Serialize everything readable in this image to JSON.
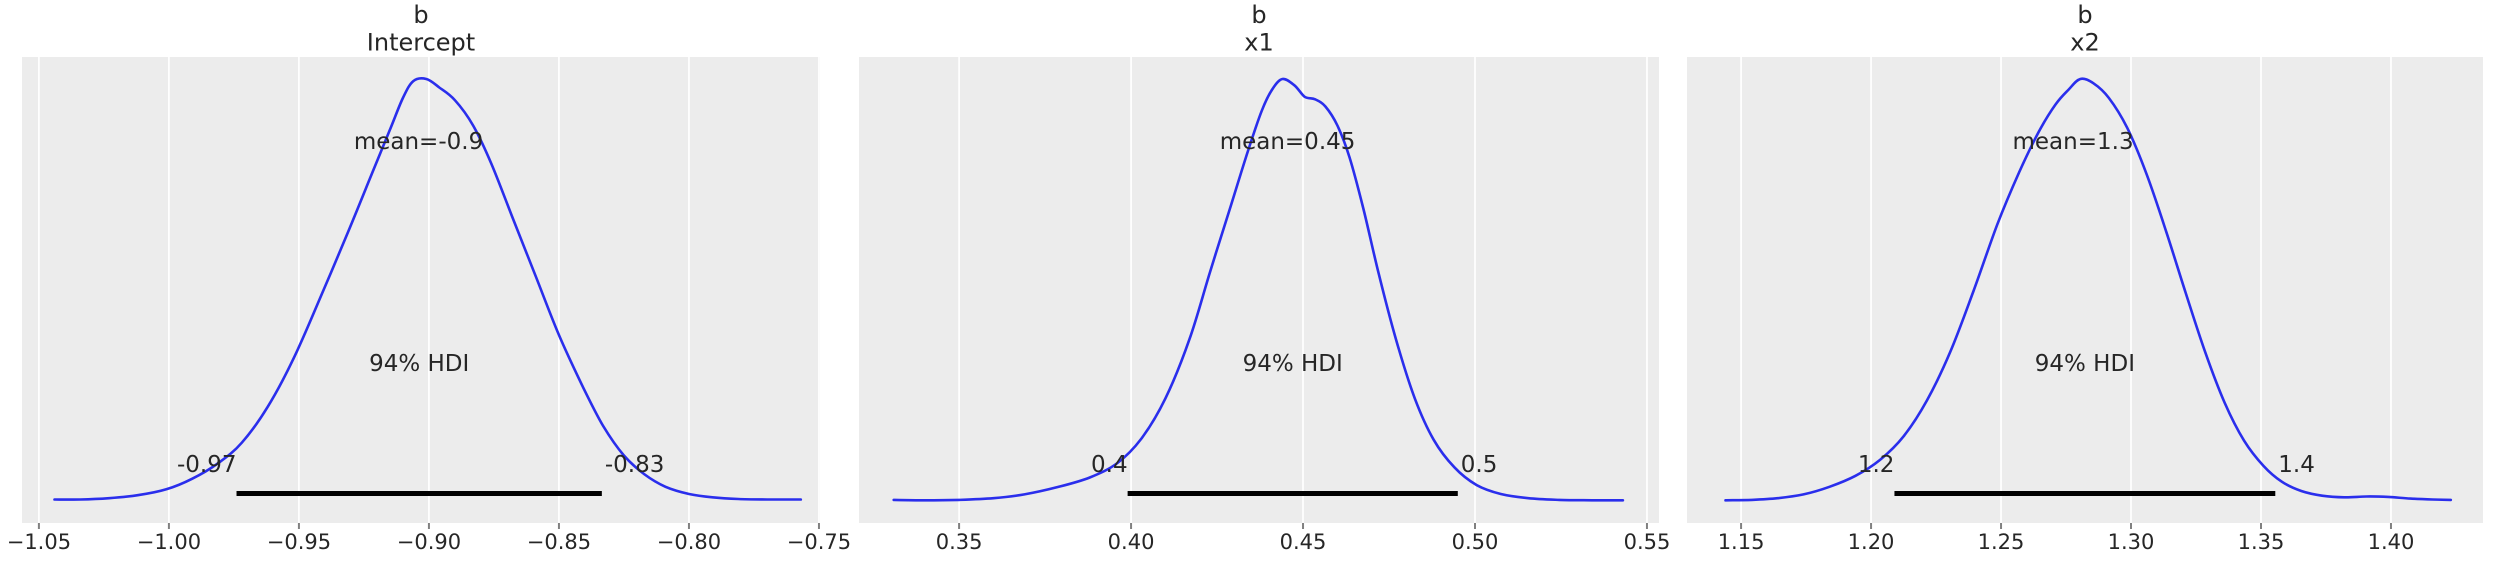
{
  "figure": {
    "background": "#ffffff"
  },
  "chart_data": {
    "type": "kde",
    "subtype": "posterior_density_panels_with_hdi",
    "hdi_probability_label": "94% HDI",
    "style": {
      "panel_background": "#ececec",
      "gridline_color": "#ffffff",
      "curve_color": "#2a2eec",
      "hdi_bar_color": "#000000",
      "text_color": "#262626",
      "tick_mark_color": "#808080"
    },
    "panels": [
      {
        "title_line1": "b",
        "title_line2": "Intercept",
        "mean_label": "mean=-0.9",
        "mean": -0.904,
        "hdi_text": "94% HDI",
        "hdi": {
          "lower": -0.974,
          "upper": -0.8335,
          "lower_label": "-0.97",
          "upper_label": "-0.83"
        },
        "xlim": [
          -1.0565,
          -0.7496
        ],
        "x_ticks": [
          {
            "value": -1.05,
            "label": "−1.05"
          },
          {
            "value": -1.0,
            "label": "−1.00"
          },
          {
            "value": -0.95,
            "label": "−0.95"
          },
          {
            "value": -0.9,
            "label": "−0.90"
          },
          {
            "value": -0.85,
            "label": "−0.85"
          },
          {
            "value": -0.8,
            "label": "−0.80"
          },
          {
            "value": -0.75,
            "label": "−0.75"
          }
        ],
        "curve_points": [
          [
            -1.044,
            0.006
          ],
          [
            -1.034,
            0.006
          ],
          [
            -1.023,
            0.009
          ],
          [
            -1.012,
            0.016
          ],
          [
            -1.001,
            0.03
          ],
          [
            -0.991,
            0.055
          ],
          [
            -0.981,
            0.092
          ],
          [
            -0.972,
            0.14
          ],
          [
            -0.962,
            0.225
          ],
          [
            -0.952,
            0.34
          ],
          [
            -0.942,
            0.48
          ],
          [
            -0.932,
            0.625
          ],
          [
            -0.923,
            0.76
          ],
          [
            -0.915,
            0.88
          ],
          [
            -0.91,
            0.955
          ],
          [
            -0.906,
            0.995
          ],
          [
            -0.901,
            1.0
          ],
          [
            -0.896,
            0.98
          ],
          [
            -0.89,
            0.95
          ],
          [
            -0.883,
            0.89
          ],
          [
            -0.876,
            0.8
          ],
          [
            -0.868,
            0.675
          ],
          [
            -0.859,
            0.535
          ],
          [
            -0.85,
            0.395
          ],
          [
            -0.841,
            0.275
          ],
          [
            -0.833,
            0.18
          ],
          [
            -0.825,
            0.11
          ],
          [
            -0.817,
            0.065
          ],
          [
            -0.809,
            0.036
          ],
          [
            -0.8,
            0.019
          ],
          [
            -0.791,
            0.011
          ],
          [
            -0.781,
            0.007
          ],
          [
            -0.77,
            0.006
          ],
          [
            -0.757,
            0.006
          ]
        ]
      },
      {
        "title_line1": "b",
        "title_line2": "x1",
        "mean_label": "mean=0.45",
        "mean": 0.4455,
        "hdi_text": "94% HDI",
        "hdi": {
          "lower": 0.399,
          "upper": 0.495,
          "lower_label": "0.4",
          "upper_label": "0.5"
        },
        "xlim": [
          0.3209,
          0.5535
        ],
        "x_ticks": [
          {
            "value": 0.35,
            "label": "0.35"
          },
          {
            "value": 0.4,
            "label": "0.40"
          },
          {
            "value": 0.45,
            "label": "0.45"
          },
          {
            "value": 0.5,
            "label": "0.50"
          },
          {
            "value": 0.55,
            "label": "0.55"
          }
        ],
        "curve_points": [
          [
            0.331,
            0.005
          ],
          [
            0.34,
            0.004
          ],
          [
            0.35,
            0.005
          ],
          [
            0.36,
            0.009
          ],
          [
            0.369,
            0.018
          ],
          [
            0.379,
            0.036
          ],
          [
            0.388,
            0.058
          ],
          [
            0.396,
            0.092
          ],
          [
            0.403,
            0.15
          ],
          [
            0.41,
            0.245
          ],
          [
            0.417,
            0.385
          ],
          [
            0.423,
            0.545
          ],
          [
            0.429,
            0.7
          ],
          [
            0.434,
            0.83
          ],
          [
            0.438,
            0.925
          ],
          [
            0.441,
            0.975
          ],
          [
            0.444,
            1.0
          ],
          [
            0.4475,
            0.985
          ],
          [
            0.4505,
            0.958
          ],
          [
            0.4535,
            0.952
          ],
          [
            0.4565,
            0.935
          ],
          [
            0.46,
            0.89
          ],
          [
            0.4635,
            0.815
          ],
          [
            0.4675,
            0.695
          ],
          [
            0.472,
            0.54
          ],
          [
            0.477,
            0.385
          ],
          [
            0.4825,
            0.245
          ],
          [
            0.488,
            0.147
          ],
          [
            0.494,
            0.082
          ],
          [
            0.5005,
            0.04
          ],
          [
            0.5075,
            0.019
          ],
          [
            0.5155,
            0.009
          ],
          [
            0.5245,
            0.005
          ],
          [
            0.534,
            0.004
          ],
          [
            0.543,
            0.004
          ]
        ]
      },
      {
        "title_line1": "b",
        "title_line2": "x2",
        "mean_label": "mean=1.3",
        "mean": 1.2777,
        "hdi_text": "94% HDI",
        "hdi": {
          "lower": 1.209,
          "upper": 1.3555,
          "lower_label": "1.2",
          "upper_label": "1.4"
        },
        "xlim": [
          1.1292,
          1.4354
        ],
        "x_ticks": [
          {
            "value": 1.15,
            "label": "1.15"
          },
          {
            "value": 1.2,
            "label": "1.20"
          },
          {
            "value": 1.25,
            "label": "1.25"
          },
          {
            "value": 1.3,
            "label": "1.30"
          },
          {
            "value": 1.35,
            "label": "1.35"
          },
          {
            "value": 1.4,
            "label": "1.40"
          }
        ],
        "curve_points": [
          [
            1.144,
            0.004
          ],
          [
            1.154,
            0.005
          ],
          [
            1.164,
            0.009
          ],
          [
            1.174,
            0.018
          ],
          [
            1.184,
            0.036
          ],
          [
            1.194,
            0.062
          ],
          [
            1.2035,
            0.1
          ],
          [
            1.2125,
            0.155
          ],
          [
            1.2215,
            0.24
          ],
          [
            1.2305,
            0.355
          ],
          [
            1.2395,
            0.5
          ],
          [
            1.2485,
            0.655
          ],
          [
            1.257,
            0.78
          ],
          [
            1.2645,
            0.875
          ],
          [
            1.271,
            0.94
          ],
          [
            1.276,
            0.975
          ],
          [
            1.2805,
            1.0
          ],
          [
            1.2855,
            0.99
          ],
          [
            1.2915,
            0.955
          ],
          [
            1.2985,
            0.885
          ],
          [
            1.306,
            0.775
          ],
          [
            1.3135,
            0.64
          ],
          [
            1.321,
            0.495
          ],
          [
            1.3285,
            0.355
          ],
          [
            1.336,
            0.235
          ],
          [
            1.3435,
            0.145
          ],
          [
            1.351,
            0.085
          ],
          [
            1.358,
            0.048
          ],
          [
            1.3655,
            0.026
          ],
          [
            1.3735,
            0.015
          ],
          [
            1.382,
            0.011
          ],
          [
            1.3905,
            0.013
          ],
          [
            1.399,
            0.012
          ],
          [
            1.4075,
            0.008
          ],
          [
            1.416,
            0.006
          ],
          [
            1.423,
            0.005
          ]
        ]
      }
    ]
  }
}
